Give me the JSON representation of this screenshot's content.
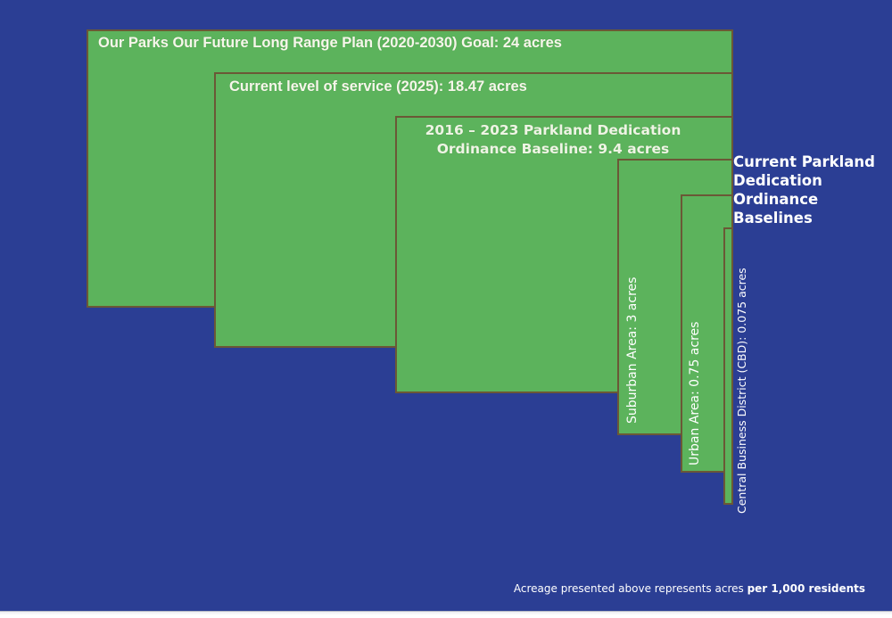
{
  "colors": {
    "background": "#2b3e94",
    "rect_fill": "#5cb35c",
    "rect_border": "#6b5836",
    "text": "#ffffff"
  },
  "rects": [
    {
      "name": "long-range-plan-goal",
      "label": "Our Parks Our Future Long Range Plan (2020-2030) Goal: 24 acres",
      "value_acres": 24
    },
    {
      "name": "current-level-of-service",
      "label": "Current level of service (2025): 18.47 acres",
      "value_acres": 18.47
    },
    {
      "name": "parkland-dedication-baseline",
      "label_line1": "2016 – 2023 Parkland Dedication",
      "label_line2": "Ordinance Baseline: 9.4 acres",
      "value_acres": 9.4
    },
    {
      "name": "suburban-area",
      "label": "Suburban Area: 3 acres",
      "value_acres": 3
    },
    {
      "name": "urban-area",
      "label": "Urban Area: 0.75 acres",
      "value_acres": 0.75
    },
    {
      "name": "central-business-district",
      "label": "Central Business District (CBD): 0.075 acres",
      "value_acres": 0.075
    }
  ],
  "side_heading": "Current Parkland Dedication Ordinance Baselines",
  "footnote": {
    "text": "Acreage presented above represents acres ",
    "bold": "per 1,000 residents"
  },
  "chart_data": {
    "type": "area",
    "variant": "nested-proportional-rectangles",
    "title": "",
    "categories": [
      "Our Parks Our Future Long Range Plan (2020-2030) Goal",
      "Current level of service (2025)",
      "2016 – 2023 Parkland Dedication Ordinance Baseline",
      "Suburban Area",
      "Urban Area",
      "Central Business District (CBD)"
    ],
    "values": [
      24,
      18.47,
      9.4,
      3,
      0.75,
      0.075
    ],
    "unit": "acres per 1,000 residents",
    "annotations": [
      "Current Parkland Dedication Ordinance Baselines",
      "Acreage presented above represents acres per 1,000 residents"
    ],
    "legend_position": "none",
    "grid": false,
    "layout": "rectangles share right edge; each smaller value steps down and right; small values labeled with vertical text"
  }
}
